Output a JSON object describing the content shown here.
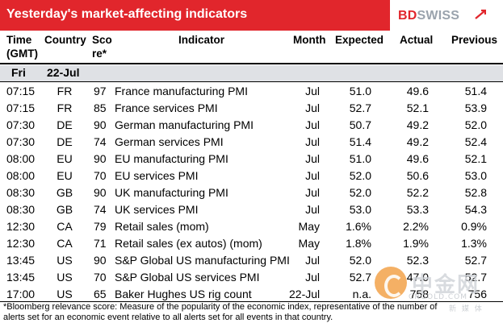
{
  "header": {
    "title": "Yesterday's market-affecting indicators",
    "logo_primary": "BD",
    "logo_secondary": "SWISS",
    "brand_color": "#e1262c"
  },
  "columns": {
    "time": "Time (GMT)",
    "country": "Country",
    "score": "Sco re*",
    "indicator": "Indicator",
    "month": "Month",
    "expected": "Expected",
    "actual": "Actual",
    "previous": "Previous"
  },
  "date_row": {
    "day": "Fri",
    "date": "22-Jul"
  },
  "rows": [
    {
      "time": "07:15",
      "country": "FR",
      "score": "97",
      "indicator": "France manufacturing PMI",
      "month": "Jul",
      "expected": "51.0",
      "actual": "49.6",
      "previous": "51.4"
    },
    {
      "time": "07:15",
      "country": "FR",
      "score": "85",
      "indicator": "France services PMI",
      "month": "Jul",
      "expected": "52.7",
      "actual": "52.1",
      "previous": "53.9"
    },
    {
      "time": "07:30",
      "country": "DE",
      "score": "90",
      "indicator": "German manufacturing PMI",
      "month": "Jul",
      "expected": "50.7",
      "actual": "49.2",
      "previous": "52.0"
    },
    {
      "time": "07:30",
      "country": "DE",
      "score": "74",
      "indicator": "German services PMI",
      "month": "Jul",
      "expected": "51.4",
      "actual": "49.2",
      "previous": "52.4"
    },
    {
      "time": "08:00",
      "country": "EU",
      "score": "90",
      "indicator": "EU manufacturing PMI",
      "month": "Jul",
      "expected": "51.0",
      "actual": "49.6",
      "previous": "52.1"
    },
    {
      "time": "08:00",
      "country": "EU",
      "score": "70",
      "indicator": "EU services PMI",
      "month": "Jul",
      "expected": "52.0",
      "actual": "50.6",
      "previous": "53.0"
    },
    {
      "time": "08:30",
      "country": "GB",
      "score": "90",
      "indicator": "UK manufacturing PMI",
      "month": "Jul",
      "expected": "52.0",
      "actual": "52.2",
      "previous": "52.8"
    },
    {
      "time": "08:30",
      "country": "GB",
      "score": "74",
      "indicator": "UK services PMI",
      "month": "Jul",
      "expected": "53.0",
      "actual": "53.3",
      "previous": "54.3"
    },
    {
      "time": "12:30",
      "country": "CA",
      "score": "79",
      "indicator": "Retail sales (mom)",
      "month": "May",
      "expected": "1.6%",
      "actual": "2.2%",
      "previous": "0.9%"
    },
    {
      "time": "12:30",
      "country": "CA",
      "score": "71",
      "indicator": "Retail sales (ex autos) (mom)",
      "month": "May",
      "expected": "1.8%",
      "actual": "1.9%",
      "previous": "1.3%"
    },
    {
      "time": "13:45",
      "country": "US",
      "score": "90",
      "indicator": "S&P Global US manufacturing PMI",
      "month": "Jul",
      "expected": "52.0",
      "actual": "52.3",
      "previous": "52.7"
    },
    {
      "time": "13:45",
      "country": "US",
      "score": "70",
      "indicator": "S&P Global US services PMI",
      "month": "Jul",
      "expected": "52.7",
      "actual": "47.0",
      "previous": "52.7"
    },
    {
      "time": "17:00",
      "country": "US",
      "score": "65",
      "indicator": "Baker Hughes US rig count",
      "month": "22-Jul",
      "expected": "n.a.",
      "actual": "758",
      "previous": "756"
    }
  ],
  "footnote": "*Bloomberg relevance score:  Measure of the popularity of the economic index, representative of the number of alerts set for an economic event relative to all alerts set for all events in that country.",
  "watermark": {
    "main": "中金网",
    "sub": "CNGOLD.COM",
    "sub2": "新 媒 体"
  }
}
